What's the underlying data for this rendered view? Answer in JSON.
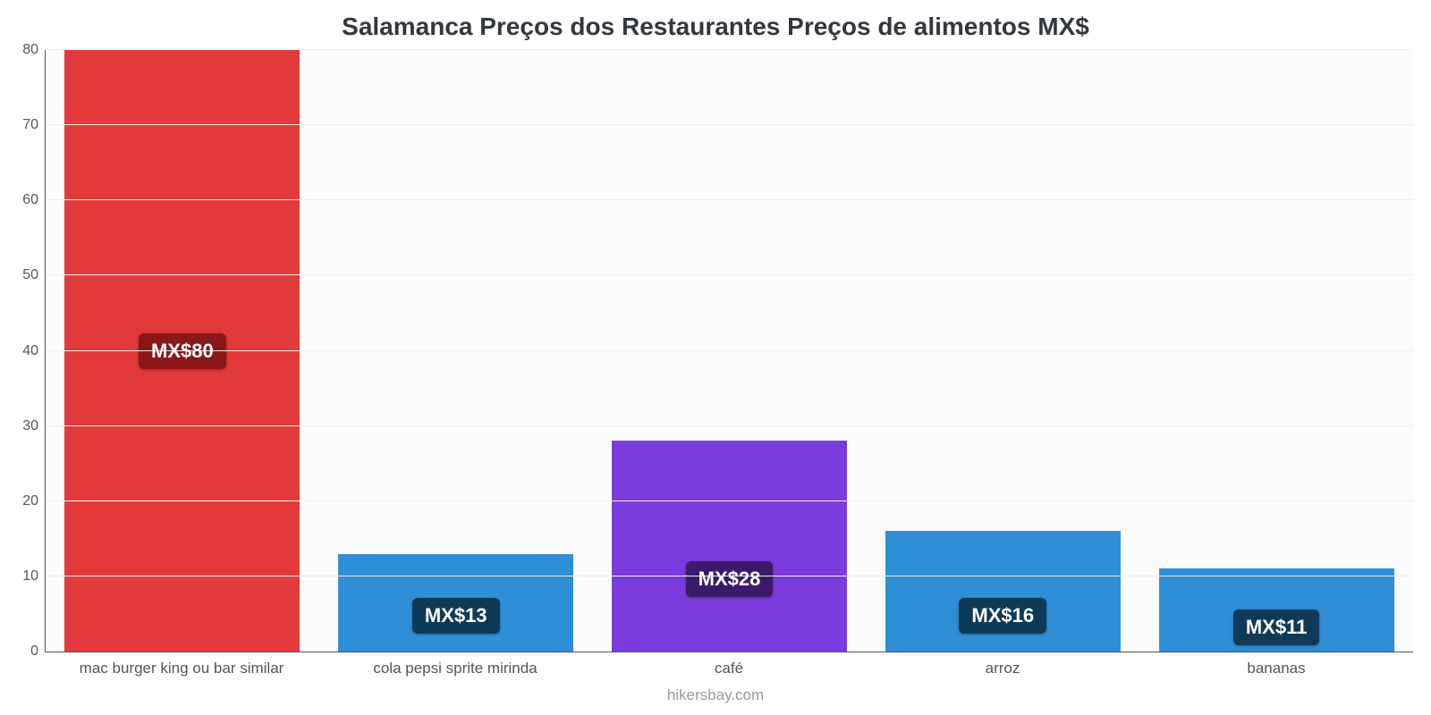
{
  "chart": {
    "type": "bar",
    "title": "Salamanca Preços dos Restaurantes Preços de alimentos MX$",
    "title_fontsize": 28,
    "title_color": "#333740",
    "credit": "hikersbay.com",
    "credit_color": "#999999",
    "background_color": "#ffffff",
    "plot_bg": "#fcfcfc",
    "grid_color": "#eeeeee",
    "axis_color": "#555555",
    "y": {
      "min": 0,
      "max": 80,
      "ticks": [
        0,
        10,
        20,
        30,
        40,
        50,
        60,
        70,
        80
      ],
      "tick_fontsize": 16,
      "tick_color": "#555555"
    },
    "x": {
      "label_fontsize": 17,
      "label_color": "#555555"
    },
    "bar_width_pct": 86,
    "value_label_prefix": "MX$",
    "value_label_fontsize": 22,
    "value_label_text_color": "#ffffff",
    "bars": [
      {
        "category": "mac burger king ou bar similar",
        "value": 80,
        "color": "#e23a3a",
        "label_bg": "#8a1717",
        "label": "MX$80",
        "label_offset_pct": 47
      },
      {
        "category": "cola pepsi sprite mirinda",
        "value": 13,
        "color": "#2f8fd6",
        "label_bg": "#0f3a57",
        "label": "MX$13",
        "label_offset_pct": 3
      },
      {
        "category": "café",
        "value": 28,
        "color": "#7c3bdc",
        "label_bg": "#3a1a6b",
        "label": "MX$28",
        "label_offset_pct": 9
      },
      {
        "category": "arroz",
        "value": 16,
        "color": "#2f8fd6",
        "label_bg": "#0f3a57",
        "label": "MX$16",
        "label_offset_pct": 3
      },
      {
        "category": "bananas",
        "value": 11,
        "color": "#2f8fd6",
        "label_bg": "#0f3a57",
        "label": "MX$11",
        "label_offset_pct": 1
      }
    ]
  }
}
